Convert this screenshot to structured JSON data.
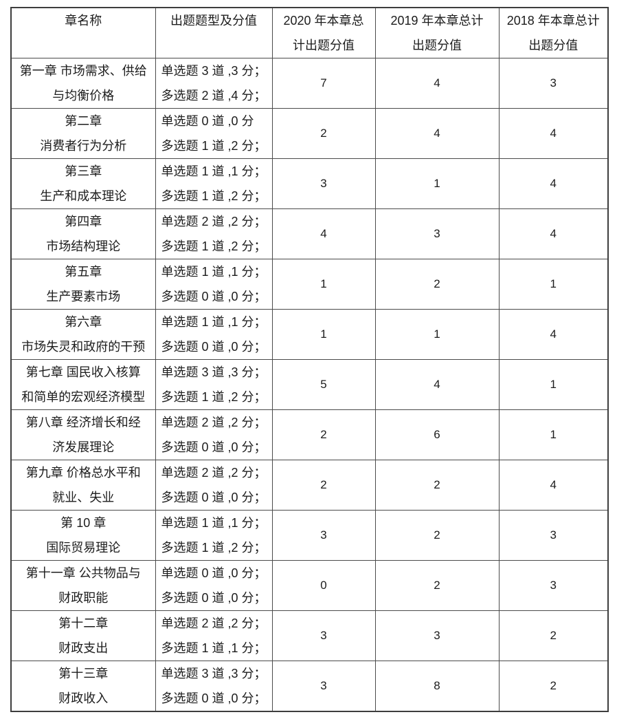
{
  "page": {
    "background": "#ffffff",
    "text_color": "#1c1c1c",
    "border_color": "#4a4a4a"
  },
  "table": {
    "headers": [
      {
        "lines": [
          "章名称",
          ""
        ]
      },
      {
        "lines": [
          "出题题型及分值",
          ""
        ]
      },
      {
        "lines": [
          "2020 年本章总",
          "计出题分值"
        ]
      },
      {
        "lines": [
          "2019 年本章总计",
          "出题分值"
        ]
      },
      {
        "lines": [
          "2018 年本章总计",
          "出题分值"
        ]
      }
    ],
    "rows": [
      {
        "chapter": [
          "第一章 市场需求、供给",
          "与均衡价格"
        ],
        "types": [
          "单选题 3 道 ,3 分；",
          "多选题 2 道 ,4 分；"
        ],
        "y2020": "7",
        "y2019": "4",
        "y2018": "3"
      },
      {
        "chapter": [
          "第二章",
          "消费者行为分析"
        ],
        "types": [
          "单选题 0 道 ,0 分",
          "多选题 1 道 ,2 分；"
        ],
        "y2020": "2",
        "y2019": "4",
        "y2018": "4"
      },
      {
        "chapter": [
          "第三章",
          "生产和成本理论"
        ],
        "types": [
          "单选题 1 道 ,1 分；",
          "多选题 1 道 ,2 分；"
        ],
        "y2020": "3",
        "y2019": "1",
        "y2018": "4"
      },
      {
        "chapter": [
          "第四章",
          "市场结构理论"
        ],
        "types": [
          "单选题 2 道 ,2 分；",
          "多选题 1 道 ,2 分；"
        ],
        "y2020": "4",
        "y2019": "3",
        "y2018": "4"
      },
      {
        "chapter": [
          "第五章",
          "生产要素市场"
        ],
        "types": [
          "单选题 1 道 ,1 分；",
          "多选题 0 道 ,0 分；"
        ],
        "y2020": "1",
        "y2019": "2",
        "y2018": "1"
      },
      {
        "chapter": [
          "第六章",
          "市场失灵和政府的干预"
        ],
        "types": [
          "单选题 1 道 ,1 分；",
          "多选题 0 道 ,0 分；"
        ],
        "y2020": "1",
        "y2019": "1",
        "y2018": "4"
      },
      {
        "chapter": [
          "第七章 国民收入核算",
          "和简单的宏观经济模型"
        ],
        "types": [
          "单选题 3 道 ,3 分；",
          "多选题 1 道 ,2 分；"
        ],
        "y2020": "5",
        "y2019": "4",
        "y2018": "1"
      },
      {
        "chapter": [
          "第八章 经济增长和经",
          "济发展理论"
        ],
        "types": [
          "单选题 2 道 ,2 分；",
          "多选题 0 道 ,0 分；"
        ],
        "y2020": "2",
        "y2019": "6",
        "y2018": "1"
      },
      {
        "chapter": [
          "第九章 价格总水平和",
          "就业、失业"
        ],
        "types": [
          "单选题 2 道 ,2 分；",
          "多选题 0 道 ,0 分；"
        ],
        "y2020": "2",
        "y2019": "2",
        "y2018": "4"
      },
      {
        "chapter": [
          "第 10 章",
          "国际贸易理论"
        ],
        "types": [
          "单选题 1 道 ,1 分；",
          "多选题 1 道 ,2 分；"
        ],
        "y2020": "3",
        "y2019": "2",
        "y2018": "3"
      },
      {
        "chapter": [
          "第十一章 公共物品与",
          "财政职能"
        ],
        "types": [
          "单选题 0 道 ,0 分；",
          "多选题 0 道 ,0 分；"
        ],
        "y2020": "0",
        "y2019": "2",
        "y2018": "3"
      },
      {
        "chapter": [
          "第十二章",
          "财政支出"
        ],
        "types": [
          "单选题 2 道 ,2 分；",
          "多选题 1 道 ,1 分；"
        ],
        "y2020": "3",
        "y2019": "3",
        "y2018": "2"
      },
      {
        "chapter": [
          "第十三章",
          "财政收入"
        ],
        "types": [
          "单选题 3 道 ,3 分；",
          "多选题 0 道 ,0 分；"
        ],
        "y2020": "3",
        "y2019": "8",
        "y2018": "2"
      }
    ]
  }
}
